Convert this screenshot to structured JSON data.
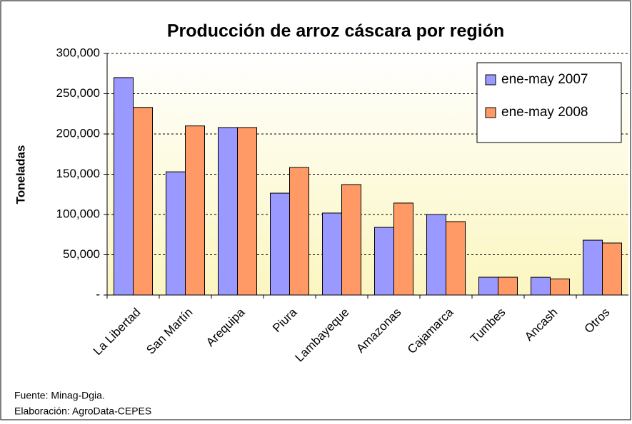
{
  "chart_data": {
    "type": "bar",
    "title": "Producción de arroz cáscara por región",
    "y_label": "Toneladas",
    "categories": [
      "La Libertad",
      "San Martín",
      "Arequipa",
      "Piura",
      "Lambayeque",
      "Amazonas",
      "Cajamarca",
      "Tumbes",
      "Ancash",
      "Otros"
    ],
    "series": [
      {
        "name": "ene-may 2007",
        "color": "#9999ff",
        "values": [
          270000,
          153000,
          208000,
          126500,
          101800,
          84000,
          100000,
          22100,
          22000,
          68100
        ]
      },
      {
        "name": "ene-may 2008",
        "color": "#ff9966",
        "values": [
          233000,
          210000,
          208000,
          158400,
          137200,
          114200,
          91200,
          22100,
          20000,
          64600
        ]
      }
    ],
    "ylim": [
      0,
      300000
    ],
    "yticks": [
      {
        "value": 0,
        "label": "-"
      },
      {
        "value": 50000,
        "label": "50,000"
      },
      {
        "value": 100000,
        "label": "100,000"
      },
      {
        "value": 150000,
        "label": "150,000"
      },
      {
        "value": 200000,
        "label": "200,000"
      },
      {
        "value": 250000,
        "label": "250,000"
      },
      {
        "value": 300000,
        "label": "300,000"
      }
    ],
    "grid": true,
    "legend": "top-right",
    "notes": [
      "Fuente: Minag-Dgia.",
      "Elaboración: AgroData-CEPES"
    ]
  }
}
